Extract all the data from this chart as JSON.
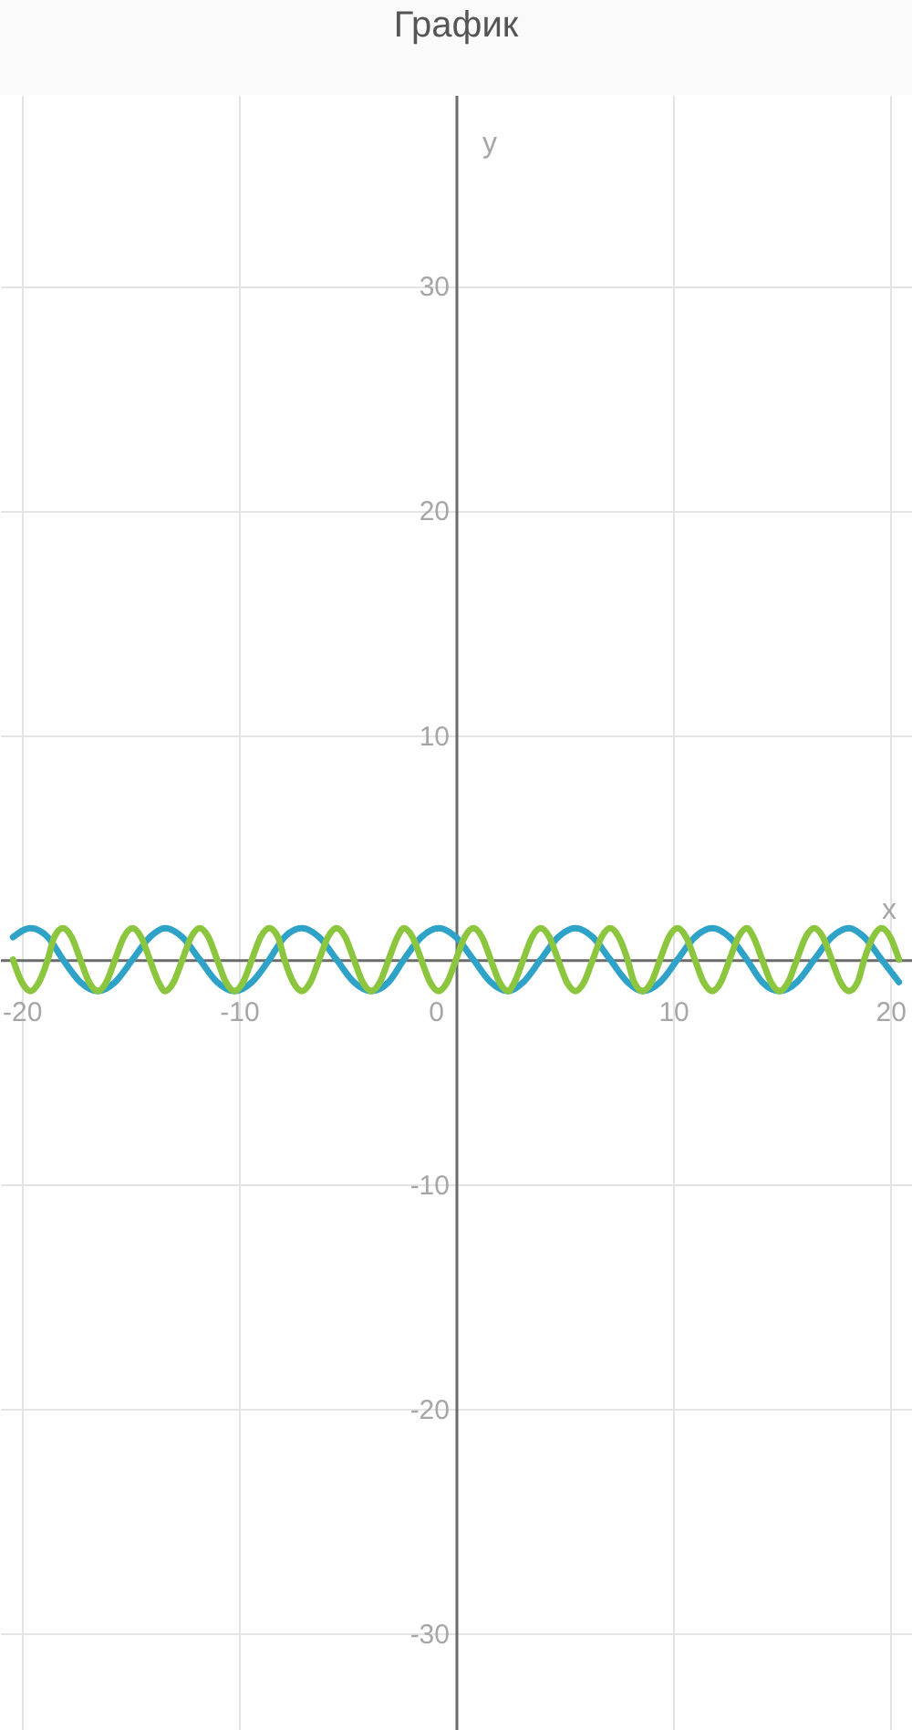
{
  "chart_data": {
    "type": "line",
    "title": "График",
    "xlabel": "x",
    "ylabel": "y",
    "xlim": [
      -21,
      21
    ],
    "ylim": [
      -34.3,
      38.5
    ],
    "xticks": [
      -20,
      -10,
      0,
      10,
      20
    ],
    "yticks": [
      -30,
      -20,
      -10,
      10,
      20,
      30
    ],
    "grid": true,
    "legend": false,
    "line_style": "solid",
    "series": [
      {
        "color": "#2fa3c7",
        "x": [
          -20.4,
          -19.6,
          -18.8,
          -18.1,
          -17.3,
          -16.5,
          -15.7,
          -14.9,
          -14.1,
          -13.4,
          -12.6,
          -11.8,
          -11.0,
          -10.2,
          -9.4,
          -8.6,
          -7.9,
          -7.1,
          -6.3,
          -5.5,
          -4.7,
          -3.9,
          -3.1,
          -2.4,
          -1.6,
          -0.8,
          0,
          0.8,
          1.6,
          2.4,
          3.1,
          3.9,
          4.7,
          5.5,
          6.3,
          7.1,
          7.9,
          8.6,
          9.4,
          10.2,
          11.0,
          11.8,
          12.6,
          13.4,
          14.1,
          14.9,
          15.7,
          16.5,
          17.3,
          18.1,
          18.8,
          19.6,
          20.4
        ],
        "values": [
          1.0,
          1.4,
          1.0,
          0,
          -1.0,
          -1.4,
          -1.0,
          0,
          1.0,
          1.4,
          1.0,
          0,
          -1.0,
          -1.4,
          -1.0,
          0,
          1.0,
          1.4,
          1.0,
          0,
          -1.0,
          -1.4,
          -1.0,
          0,
          1.0,
          1.4,
          1.0,
          0,
          -1.0,
          -1.4,
          -1.0,
          0,
          1.0,
          1.4,
          1.0,
          0,
          -1.0,
          -1.4,
          -1.0,
          0,
          1.0,
          1.4,
          1.0,
          0,
          -1.0,
          -1.4,
          -1.0,
          0,
          1.0,
          1.4,
          1.0,
          0,
          -1.0
        ]
      },
      {
        "color": "#8cc63f",
        "x": [
          -20.4,
          -20.0,
          -19.6,
          -19.2,
          -18.8,
          -18.5,
          -18.1,
          -17.7,
          -17.3,
          -16.9,
          -16.5,
          -16.1,
          -15.7,
          -15.3,
          -14.9,
          -14.5,
          -14.1,
          -13.7,
          -13.4,
          -13.0,
          -12.6,
          -12.2,
          -11.8,
          -11.4,
          -11.0,
          -10.6,
          -10.2,
          -9.8,
          -9.4,
          -9.0,
          -8.6,
          -8.2,
          -7.9,
          -7.5,
          -7.1,
          -6.7,
          -6.3,
          -5.9,
          -5.5,
          -5.1,
          -4.7,
          -4.3,
          -3.9,
          -3.5,
          -3.1,
          -2.7,
          -2.4,
          -2.0,
          -1.6,
          -1.2,
          -0.8,
          -0.4,
          0,
          0.4,
          0.8,
          1.2,
          1.6,
          2.0,
          2.4,
          2.7,
          3.1,
          3.5,
          3.9,
          4.3,
          4.7,
          5.1,
          5.5,
          5.9,
          6.3,
          6.7,
          7.1,
          7.5,
          7.9,
          8.2,
          8.6,
          9.0,
          9.4,
          9.8,
          10.2,
          10.6,
          11.0,
          11.4,
          11.8,
          12.2,
          12.6,
          13.0,
          13.4,
          13.7,
          14.1,
          14.5,
          14.9,
          15.3,
          15.7,
          16.1,
          16.5,
          16.9,
          17.3,
          17.7,
          18.1,
          18.5,
          18.8,
          19.2,
          19.6,
          20.0,
          20.4
        ],
        "values": [
          0,
          -1.0,
          -1.4,
          -1.0,
          0,
          1.0,
          1.4,
          1.0,
          0,
          -1.0,
          -1.4,
          -1.0,
          0,
          1.0,
          1.4,
          1.0,
          0,
          -1.0,
          -1.4,
          -1.0,
          0,
          1.0,
          1.4,
          1.0,
          0,
          -1.0,
          -1.4,
          -1.0,
          0,
          1.0,
          1.4,
          1.0,
          0,
          -1.0,
          -1.4,
          -1.0,
          0,
          1.0,
          1.4,
          1.0,
          0,
          -1.0,
          -1.4,
          -1.0,
          0,
          1.0,
          1.4,
          1.0,
          0,
          -1.0,
          -1.4,
          -1.0,
          0,
          1.0,
          1.4,
          1.0,
          0,
          -1.0,
          -1.4,
          -1.0,
          0,
          1.0,
          1.4,
          1.0,
          0,
          -1.0,
          -1.4,
          -1.0,
          0,
          1.0,
          1.4,
          1.0,
          0,
          -1.0,
          -1.4,
          -1.0,
          0,
          1.0,
          1.4,
          1.0,
          0,
          -1.0,
          -1.4,
          -1.0,
          0,
          1.0,
          1.4,
          1.0,
          0,
          -1.0,
          -1.4,
          -1.0,
          0,
          1.0,
          1.4,
          1.0,
          0,
          -1.0,
          -1.4,
          -1.0,
          0,
          1.0,
          1.4,
          1.0,
          0
        ]
      }
    ]
  }
}
